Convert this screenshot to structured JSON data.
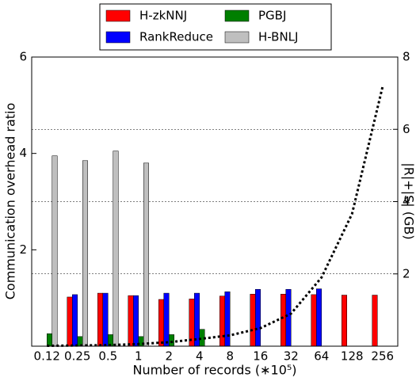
{
  "chart_data": {
    "type": "bar",
    "categories": [
      "0.12",
      "0.25",
      "0.5",
      "1",
      "2",
      "4",
      "8",
      "16",
      "32",
      "64",
      "128",
      "256"
    ],
    "series": [
      {
        "name": "H-zkNNJ",
        "color": "#ff0000",
        "values": [
          null,
          1.02,
          1.1,
          1.05,
          0.97,
          0.98,
          1.04,
          1.08,
          1.08,
          1.07,
          1.06,
          1.06
        ]
      },
      {
        "name": "RankReduce",
        "color": "#0000ff",
        "values": [
          null,
          1.07,
          1.1,
          1.05,
          1.1,
          1.1,
          1.13,
          1.18,
          1.18,
          1.19,
          null,
          null
        ]
      },
      {
        "name": "PGBJ",
        "color": "#007f00",
        "values": [
          0.26,
          0.2,
          0.24,
          0.2,
          0.24,
          0.35,
          null,
          null,
          null,
          null,
          null,
          null
        ]
      },
      {
        "name": "H-BNLJ",
        "color": "#bfbfbf",
        "values": [
          3.95,
          3.85,
          4.05,
          3.8,
          null,
          null,
          null,
          null,
          null,
          null,
          null,
          null
        ]
      },
      {
        "type": "line",
        "axis": "y2",
        "color": "#000000",
        "values": [
          0.01,
          0.02,
          0.03,
          0.06,
          0.11,
          0.2,
          0.3,
          0.5,
          0.9,
          1.9,
          3.66,
          7.17
        ]
      }
    ],
    "ylabel": "Communication overhead ratio",
    "y2label": "|R|+|S| (GB)",
    "xlabel": "Number of records (∗10⁵)",
    "ylim": [
      0,
      6
    ],
    "yticks": [
      2,
      4,
      6
    ],
    "y2lim": [
      0,
      8
    ],
    "y2ticks": [
      2,
      4,
      6,
      8
    ],
    "grid": true
  }
}
